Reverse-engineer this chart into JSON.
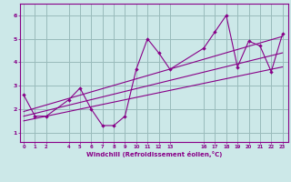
{
  "xlabel": "Windchill (Refroidissement éolien,°C)",
  "bg_color": "#cce8e8",
  "line_color": "#880088",
  "grid_color": "#99bbbb",
  "x_ticks": [
    0,
    1,
    2,
    4,
    5,
    6,
    7,
    8,
    9,
    10,
    11,
    12,
    13,
    16,
    17,
    18,
    19,
    20,
    21,
    22,
    23
  ],
  "scatter_x": [
    0,
    1,
    2,
    4,
    5,
    6,
    7,
    8,
    9,
    10,
    11,
    12,
    13,
    16,
    17,
    18,
    19,
    20,
    21,
    22,
    23
  ],
  "scatter_y": [
    2.6,
    1.7,
    1.7,
    2.4,
    2.9,
    2.0,
    1.3,
    1.3,
    1.7,
    3.7,
    5.0,
    4.4,
    3.7,
    4.6,
    5.3,
    6.0,
    3.8,
    4.9,
    4.7,
    3.6,
    5.2
  ],
  "line1_x": [
    0,
    23
  ],
  "line1_y": [
    1.5,
    3.8
  ],
  "line2_x": [
    0,
    23
  ],
  "line2_y": [
    1.9,
    5.1
  ],
  "line3_x": [
    0,
    23
  ],
  "line3_y": [
    1.7,
    4.4
  ],
  "y_ticks": [
    1,
    2,
    3,
    4,
    5,
    6
  ],
  "ylim": [
    0.6,
    6.5
  ],
  "xlim": [
    -0.3,
    23.5
  ]
}
